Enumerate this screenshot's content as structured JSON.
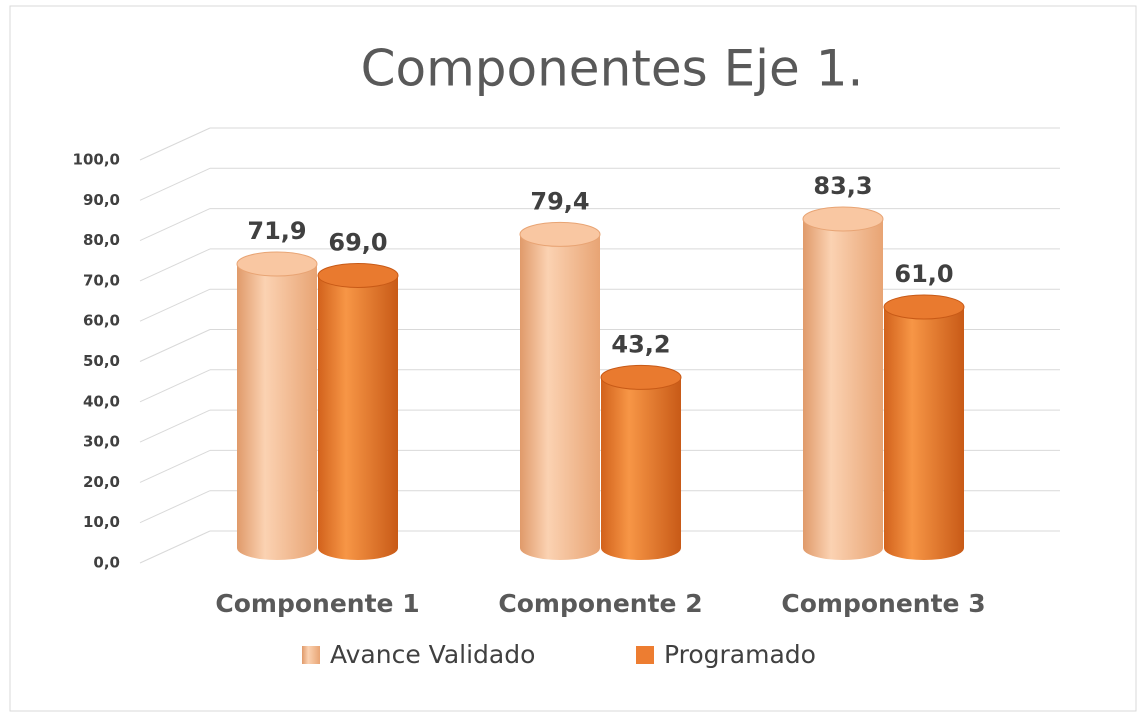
{
  "chart_data": {
    "type": "bar",
    "title": "Componentes Eje 1.",
    "categories": [
      "Componente 1",
      "Componente 2",
      "Componente 3"
    ],
    "series": [
      {
        "name": "Avance Validado",
        "color": "#f4b183",
        "values": [
          71.9,
          79.4,
          83.3
        ],
        "value_labels": [
          "71,9",
          "79,4",
          "83,3"
        ]
      },
      {
        "name": "Programado",
        "color": "#ed7d31",
        "values": [
          69.0,
          43.2,
          61.0
        ],
        "value_labels": [
          "69,0",
          "43,2",
          "61,0"
        ]
      }
    ],
    "ylim": [
      0,
      100
    ],
    "yticks": [
      {
        "value": 0,
        "label": "0,0"
      },
      {
        "value": 10,
        "label": "10,0"
      },
      {
        "value": 20,
        "label": "20,0"
      },
      {
        "value": 30,
        "label": "30,0"
      },
      {
        "value": 40,
        "label": "40,0"
      },
      {
        "value": 50,
        "label": "50,0"
      },
      {
        "value": 60,
        "label": "60,0"
      },
      {
        "value": 70,
        "label": "70,0"
      },
      {
        "value": 80,
        "label": "80,0"
      },
      {
        "value": 90,
        "label": "90,0"
      },
      {
        "value": 100,
        "label": "100,0"
      }
    ],
    "grid": true,
    "legend": "bottom"
  }
}
